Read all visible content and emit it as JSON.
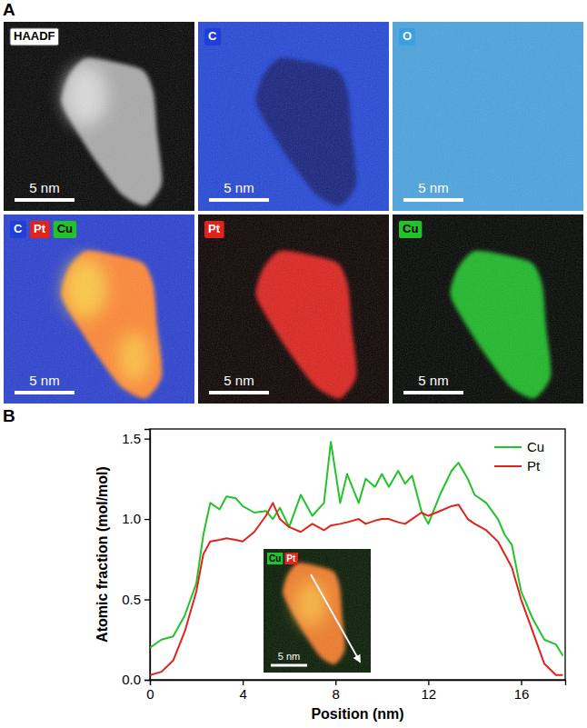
{
  "panel_labels": [
    "A",
    "B"
  ],
  "image_panels": [
    {
      "labels": [
        {
          "text": "HAADF",
          "color": "#ffffff"
        }
      ],
      "scale_bar": "5 nm"
    },
    {
      "labels": [
        {
          "text": "C",
          "color": "#1f3fd8"
        }
      ],
      "scale_bar": "5 nm"
    },
    {
      "labels": [
        {
          "text": "O",
          "color": "#3b9fe0"
        }
      ],
      "scale_bar": "5 nm"
    },
    {
      "labels": [
        {
          "text": "C",
          "color": "#1f3fd8"
        },
        {
          "text": "Pt",
          "color": "#e0231b"
        },
        {
          "text": "Cu",
          "color": "#22c22a"
        }
      ],
      "scale_bar": "5 nm"
    },
    {
      "labels": [
        {
          "text": "Pt",
          "color": "#e0231b"
        }
      ],
      "scale_bar": "5 nm"
    },
    {
      "labels": [
        {
          "text": "Cu",
          "color": "#22c22a"
        }
      ],
      "scale_bar": "5 nm"
    }
  ],
  "inset": {
    "labels": [
      {
        "text": "Cu",
        "color": "#22c22a"
      },
      {
        "text": "Pt",
        "color": "#e0231b"
      }
    ],
    "scale_bar": "5 nm"
  },
  "chart_data": {
    "type": "line",
    "x_label": "Position (nm)",
    "y_label": "Atomic fraction (mol/mol)",
    "x": [
      0,
      0.5,
      1,
      1.5,
      2,
      2.3,
      2.6,
      3,
      3.3,
      3.7,
      4,
      4.5,
      5,
      5.3,
      5.6,
      6,
      6.5,
      7,
      7.5,
      7.8,
      8.2,
      8.5,
      9,
      9.3,
      9.7,
      10,
      10.3,
      10.7,
      11,
      11.3,
      11.7,
      12,
      12.5,
      13,
      13.3,
      13.7,
      14,
      14.5,
      15,
      15.3,
      15.6,
      16,
      16.5,
      17,
      17.5,
      17.8
    ],
    "series": [
      {
        "name": "Cu",
        "color": "#22c22a",
        "values": [
          0.2,
          0.25,
          0.27,
          0.4,
          0.6,
          0.9,
          1.1,
          1.06,
          1.14,
          1.13,
          1.08,
          1.04,
          1.05,
          1.0,
          1.07,
          0.95,
          1.15,
          1.02,
          1.1,
          1.48,
          1.1,
          1.28,
          1.1,
          1.25,
          1.2,
          1.28,
          1.2,
          1.3,
          1.22,
          1.27,
          1.05,
          0.97,
          1.15,
          1.3,
          1.35,
          1.25,
          1.15,
          1.1,
          1.0,
          0.9,
          0.84,
          0.55,
          0.38,
          0.25,
          0.22,
          0.15
        ]
      },
      {
        "name": "Pt",
        "color": "#e0231b",
        "values": [
          0.03,
          0.05,
          0.12,
          0.3,
          0.55,
          0.78,
          0.86,
          0.87,
          0.88,
          0.87,
          0.86,
          0.92,
          1.02,
          1.1,
          1.0,
          0.95,
          0.92,
          0.97,
          0.93,
          0.96,
          0.97,
          0.98,
          1.0,
          0.97,
          0.99,
          1.0,
          1.0,
          0.98,
          0.97,
          1.0,
          1.04,
          1.02,
          1.05,
          1.08,
          1.09,
          1.0,
          0.97,
          0.93,
          0.86,
          0.78,
          0.7,
          0.5,
          0.3,
          0.1,
          0.03,
          0.03
        ]
      }
    ],
    "xlim": [
      0,
      17.9
    ],
    "xticks": [
      0,
      4,
      8,
      12,
      16
    ],
    "ylim": [
      0,
      1.56
    ],
    "yticks": [
      {
        "value": 0,
        "label": "0.0"
      },
      {
        "value": 0.5,
        "label": "0.5"
      },
      {
        "value": 1,
        "label": "1.0"
      },
      {
        "value": 1.5,
        "label": "1.5"
      }
    ],
    "grid": false,
    "legend": "top-right"
  }
}
